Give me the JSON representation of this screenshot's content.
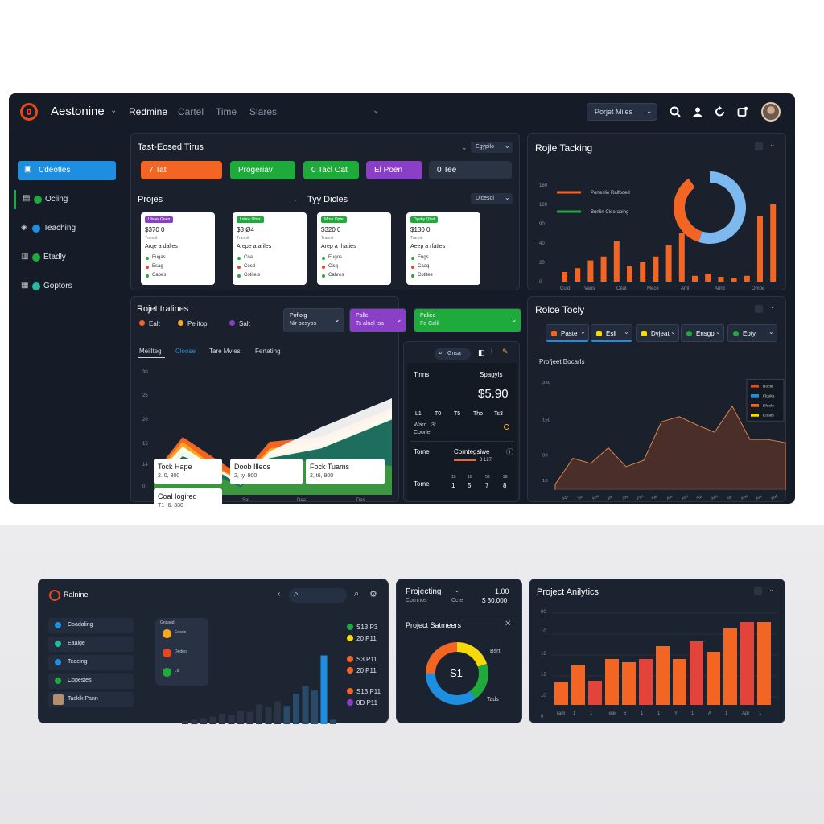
{
  "app": {
    "brand": "Aestonine",
    "nav_tabs": [
      "Redmine",
      "Cartel",
      "Time",
      "Slares"
    ],
    "project_select": "Porjet Miles"
  },
  "sidebar": {
    "items": [
      {
        "label": "Cdeotles",
        "active": true
      },
      {
        "label": "Ocling"
      },
      {
        "label": "Teaching"
      },
      {
        "label": "Etadly"
      },
      {
        "label": "Goptors"
      }
    ]
  },
  "task_timeline": {
    "title": "Tast-Eosed Tirus",
    "filter": "Egypilo",
    "buttons": [
      {
        "label": "7 Tat",
        "color": "#f26522"
      },
      {
        "label": "Progeriav",
        "color": "#1faa3c"
      },
      {
        "label": "0 Tacl Oat",
        "color": "#1faa3c"
      },
      {
        "label": "El Poen",
        "color": "#8a3fc7"
      },
      {
        "label": "0 Tee",
        "color": "#2b3445"
      }
    ]
  },
  "projects": {
    "title": "Projes",
    "title2": "Tyy Dicles",
    "filter": "Dicesol",
    "cards": [
      {
        "tag": "Ulsaw Gnen",
        "tag_color": "#8a3fc7",
        "price": "$370 0",
        "sub": "Tranoit",
        "desc": "Arqe a dalies",
        "rows": [
          "Fugas",
          "Esag",
          "Cabes"
        ]
      },
      {
        "tag": "Lstaw Ober",
        "tag_color": "#1faa3c",
        "price": "$3 Ø4",
        "sub": "Tranoit",
        "desc": "Arepe a ariles",
        "rows": [
          "Cnal",
          "Cesd",
          "Cotitels"
        ]
      },
      {
        "tag": "Mrne Opte",
        "tag_color": "#1faa3c",
        "price": "$320 0",
        "sub": "Tranoit",
        "desc": "Arep a rhaties",
        "rows": [
          "Eugos",
          "Cisq",
          "Cahres"
        ]
      },
      {
        "tag": "Dyeby Qhet",
        "tag_color": "#1faa3c",
        "price": "$130 0",
        "sub": "Tranoit",
        "desc": "Aeep a rfatles",
        "rows": [
          "Eugs",
          "Caaq",
          "Cotites"
        ]
      }
    ]
  },
  "role_tracking": {
    "title": "Rojle Tacking",
    "legend": [
      "Porfeslie Ralfoced",
      "Bunlin Cleorabing"
    ],
    "tick_labels": [
      "Cuid",
      "Vaos",
      "Ceat",
      "Mece",
      "Aml",
      "Anrd",
      "Ombe"
    ],
    "y_ticks": [
      "160",
      "120",
      "90",
      "40",
      "20",
      "0"
    ]
  },
  "project_timelines": {
    "title": "Rojet tralines",
    "legend": [
      {
        "label": "Ealt",
        "color": "#f26522"
      },
      {
        "label": "Pelitop",
        "color": "#f5a623"
      },
      {
        "label": "Salt",
        "color": "#8a3fc7"
      }
    ],
    "selects": [
      {
        "label": "Pofloig",
        "sub": "Nir besyos",
        "color": "#2b3445"
      },
      {
        "label": "Palle",
        "sub": "Ts alnal tsa",
        "color": "#8a3fc7"
      },
      {
        "label": "Paliee",
        "sub": "Fo Calil",
        "color": "#1faa3c"
      }
    ],
    "tabs": [
      "Meillteg",
      "Cloose",
      "Tare Mvies",
      "Fertating"
    ],
    "cards": [
      {
        "title": "Tock Hape",
        "value": "2. 0, 300"
      },
      {
        "title": "Doob Illeos",
        "value": "2, ty, 900"
      },
      {
        "title": "Fock Tuams",
        "value": "2, t6, 900"
      },
      {
        "title": "Coal Iogired",
        "value": "T1 ·6. 330"
      }
    ],
    "y_ticks": [
      "30",
      "25",
      "20",
      "15",
      "14",
      "0"
    ],
    "x_ticks": [
      "1",
      "Sat",
      "Dea",
      "Das"
    ]
  },
  "stats": {
    "search": "Gnsa",
    "label1": "Tinns",
    "label2": "Spagyls",
    "amount": "$5.90",
    "cols": [
      "L1",
      "T0",
      "T5",
      "Tho",
      "Ts3"
    ],
    "row_a": "Ward",
    "row_a_val": "3t",
    "row_b": "Coorle",
    "label3": "Tome",
    "label3b": "Corntegsiwe",
    "label3c": "3 127",
    "label4": "Tome",
    "nums_top": [
      "15",
      "10",
      "53",
      "98"
    ],
    "nums": [
      "1",
      "5",
      "7",
      "8"
    ]
  },
  "role_today": {
    "title": "Rolce Tocly",
    "pills": [
      {
        "label": "Paste",
        "color": "#f26522"
      },
      {
        "label": "Esll",
        "color": "#f5d90a"
      },
      {
        "label": "Dvjeat",
        "color": "#f5d90a"
      },
      {
        "label": "Ensgp",
        "color": "#1faa3c"
      },
      {
        "label": "Epty",
        "color": "#1faa3c"
      }
    ],
    "subtitle": "Profjeet Bocarls",
    "legend": [
      "Bocle",
      "Flosks",
      "Efecle",
      "Eoiats"
    ],
    "y_ticks": [
      "330",
      "150",
      "90",
      "10"
    ],
    "x_ticks": [
      "Apr",
      "Jun",
      "Ano",
      "Jol",
      "Jos",
      "Fan",
      "Fel",
      "Aor",
      "Aso",
      "Tul",
      "Aco",
      "Apr",
      "Ano",
      "Apt",
      "Aod"
    ]
  },
  "bottom_left": {
    "brand": "Ralnine",
    "sidebar": [
      "Coadaling",
      "Eaaige",
      "Teaeing",
      "Copestes",
      "Tacklk Pann"
    ],
    "card": {
      "head": "Gnsaod",
      "rows": [
        "Ensdo",
        "Dedeo",
        "Lic"
      ]
    },
    "right_rows": [
      {
        "a": "S13 P3",
        "b": "20 P11",
        "ca": "#1faa3c",
        "cb": "#f5d90a"
      },
      {
        "a": "S3 P11",
        "b": "20 P11",
        "ca": "#f26522",
        "cb": "#f26522"
      },
      {
        "a": "S13 P11",
        "b": "0D P11",
        "ca": "#f26522",
        "cb": "#8a3fc7"
      }
    ]
  },
  "bottom_mid": {
    "title": "Projecting",
    "value": "1.00",
    "sub": "Cornnos",
    "sub2": "Ccte",
    "amount": "$ 30.000",
    "title2": "Project Satmeers",
    "donut_label": "S1",
    "donut_l1": "Bsrt",
    "donut_l2": "Tads"
  },
  "bottom_right": {
    "title": "Project Anilytics",
    "y_ticks": [
      "00",
      "10",
      "16",
      "16",
      "10",
      "0"
    ],
    "x_ticks": [
      "Tam",
      "1",
      "1",
      "Tele",
      "6",
      "1",
      "1",
      "Y",
      "1",
      "A",
      "1",
      "Apr",
      "1"
    ]
  },
  "charts": {
    "role_tracking_bars": {
      "type": "bar",
      "values": [
        10,
        14,
        22,
        26,
        42,
        16,
        20,
        26,
        38,
        50,
        6,
        8,
        5,
        4,
        6,
        68,
        80
      ]
    },
    "role_tracking_donut": {
      "type": "pie",
      "values": [
        55,
        35,
        10
      ]
    },
    "timeline_area": {
      "type": "area",
      "series": [
        {
          "name": "",
          "values": [
            22,
            60,
            40,
            20,
            55,
            60,
            90
          ],
          "color": "#f26522"
        },
        {
          "name": "",
          "values": [
            20,
            55,
            32,
            15,
            48,
            55,
            85
          ],
          "color": "#f5a623"
        },
        {
          "name": "",
          "values": [
            16,
            45,
            30,
            12,
            40,
            50,
            80
          ],
          "color": "#1faa3c"
        }
      ]
    },
    "role_today_area": {
      "type": "area",
      "values": [
        5,
        30,
        25,
        40,
        22,
        28,
        65,
        70,
        62,
        55,
        80,
        48,
        48,
        45
      ]
    },
    "bottom_left_bars": {
      "type": "bar",
      "values": [
        4,
        6,
        8,
        10,
        14,
        12,
        18,
        16,
        26,
        22,
        30,
        24,
        40,
        50,
        44,
        90,
        6,
        4
      ]
    },
    "bottom_right_bars": {
      "type": "bar",
      "values": [
        28,
        50,
        30,
        57,
        53,
        57,
        73,
        57,
        79,
        66,
        95,
        103,
        103
      ]
    }
  }
}
